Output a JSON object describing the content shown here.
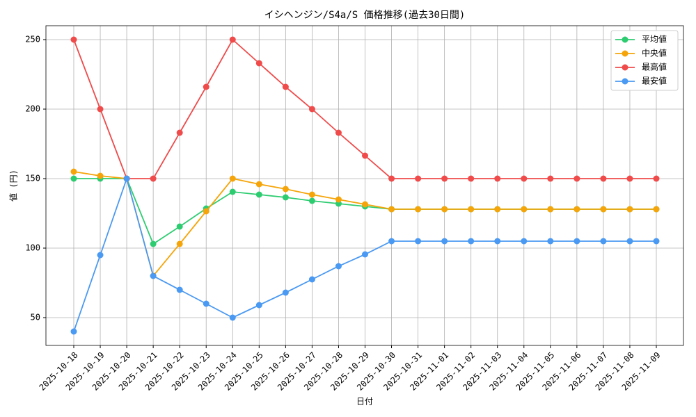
{
  "chart_data": {
    "type": "line",
    "title": "イシヘンジン/S4a/S 価格推移(過去30日間)",
    "x_label": "日付",
    "y_label": "値 (円)",
    "categories": [
      "2025-10-18",
      "2025-10-19",
      "2025-10-20",
      "2025-10-21",
      "2025-10-22",
      "2025-10-23",
      "2025-10-24",
      "2025-10-25",
      "2025-10-26",
      "2025-10-27",
      "2025-10-28",
      "2025-10-29",
      "2025-10-30",
      "2025-10-31",
      "2025-11-01",
      "2025-11-02",
      "2025-11-03",
      "2025-11-04",
      "2025-11-05",
      "2025-11-06",
      "2025-11-07",
      "2025-11-08",
      "2025-11-09"
    ],
    "series": [
      {
        "name": "平均値",
        "color": "#2ecc71",
        "values": [
          150,
          150,
          150,
          103,
          115.5,
          128.5,
          140.5,
          138.5,
          136.5,
          134,
          132,
          130,
          128,
          128,
          128,
          128,
          128,
          128,
          128,
          128,
          128,
          128,
          128
        ]
      },
      {
        "name": "中央値",
        "color": "#f5a50a",
        "values": [
          155,
          152,
          150,
          80,
          103,
          126.5,
          150,
          146,
          142.5,
          138.5,
          135,
          131.5,
          128,
          128,
          128,
          128,
          128,
          128,
          128,
          128,
          128,
          128,
          128
        ]
      },
      {
        "name": "最高値",
        "color": "#ef4b4b",
        "values": [
          250,
          200,
          150,
          150,
          183,
          216,
          250,
          233,
          216,
          200,
          183,
          166.5,
          150,
          150,
          150,
          150,
          150,
          150,
          150,
          150,
          150,
          150,
          150
        ]
      },
      {
        "name": "最安値",
        "color": "#4a99f2",
        "values": [
          40,
          95,
          150,
          80,
          70,
          60,
          50,
          59,
          68,
          77.5,
          87,
          95.5,
          105,
          105,
          105,
          105,
          105,
          105,
          105,
          105,
          105,
          105,
          105
        ]
      }
    ],
    "ylim": [
      30,
      260
    ],
    "yticks": [
      50,
      100,
      150,
      200,
      250
    ],
    "grid": true,
    "legend": "upper-right"
  }
}
